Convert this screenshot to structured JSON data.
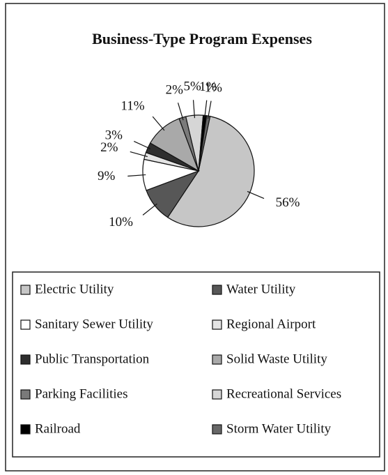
{
  "chart_data": {
    "type": "pie",
    "title": "Business-Type Program Expenses",
    "labels": [
      "Electric Utility",
      "Water Utility",
      "Sanitary Sewer Utility",
      "Regional Airport",
      "Public Transportation",
      "Solid Waste Utility",
      "Parking Facilities",
      "Recreational Services",
      "Railroad",
      "Storm Water Utility"
    ],
    "values": [
      56,
      10,
      9,
      2,
      3,
      11,
      2,
      5,
      1,
      1
    ],
    "value_labels": [
      "56%",
      "10%",
      "9%",
      "2%",
      "3%",
      "11%",
      "2%",
      "5%",
      "1%",
      "1%"
    ],
    "colors": [
      "#c6c6c6",
      "#575757",
      "#ffffff",
      "#e4e4e4",
      "#2e2e2e",
      "#a9a9a9",
      "#7a7a7a",
      "#d6d6d6",
      "#000000",
      "#686868"
    ],
    "legend": "bottom"
  }
}
